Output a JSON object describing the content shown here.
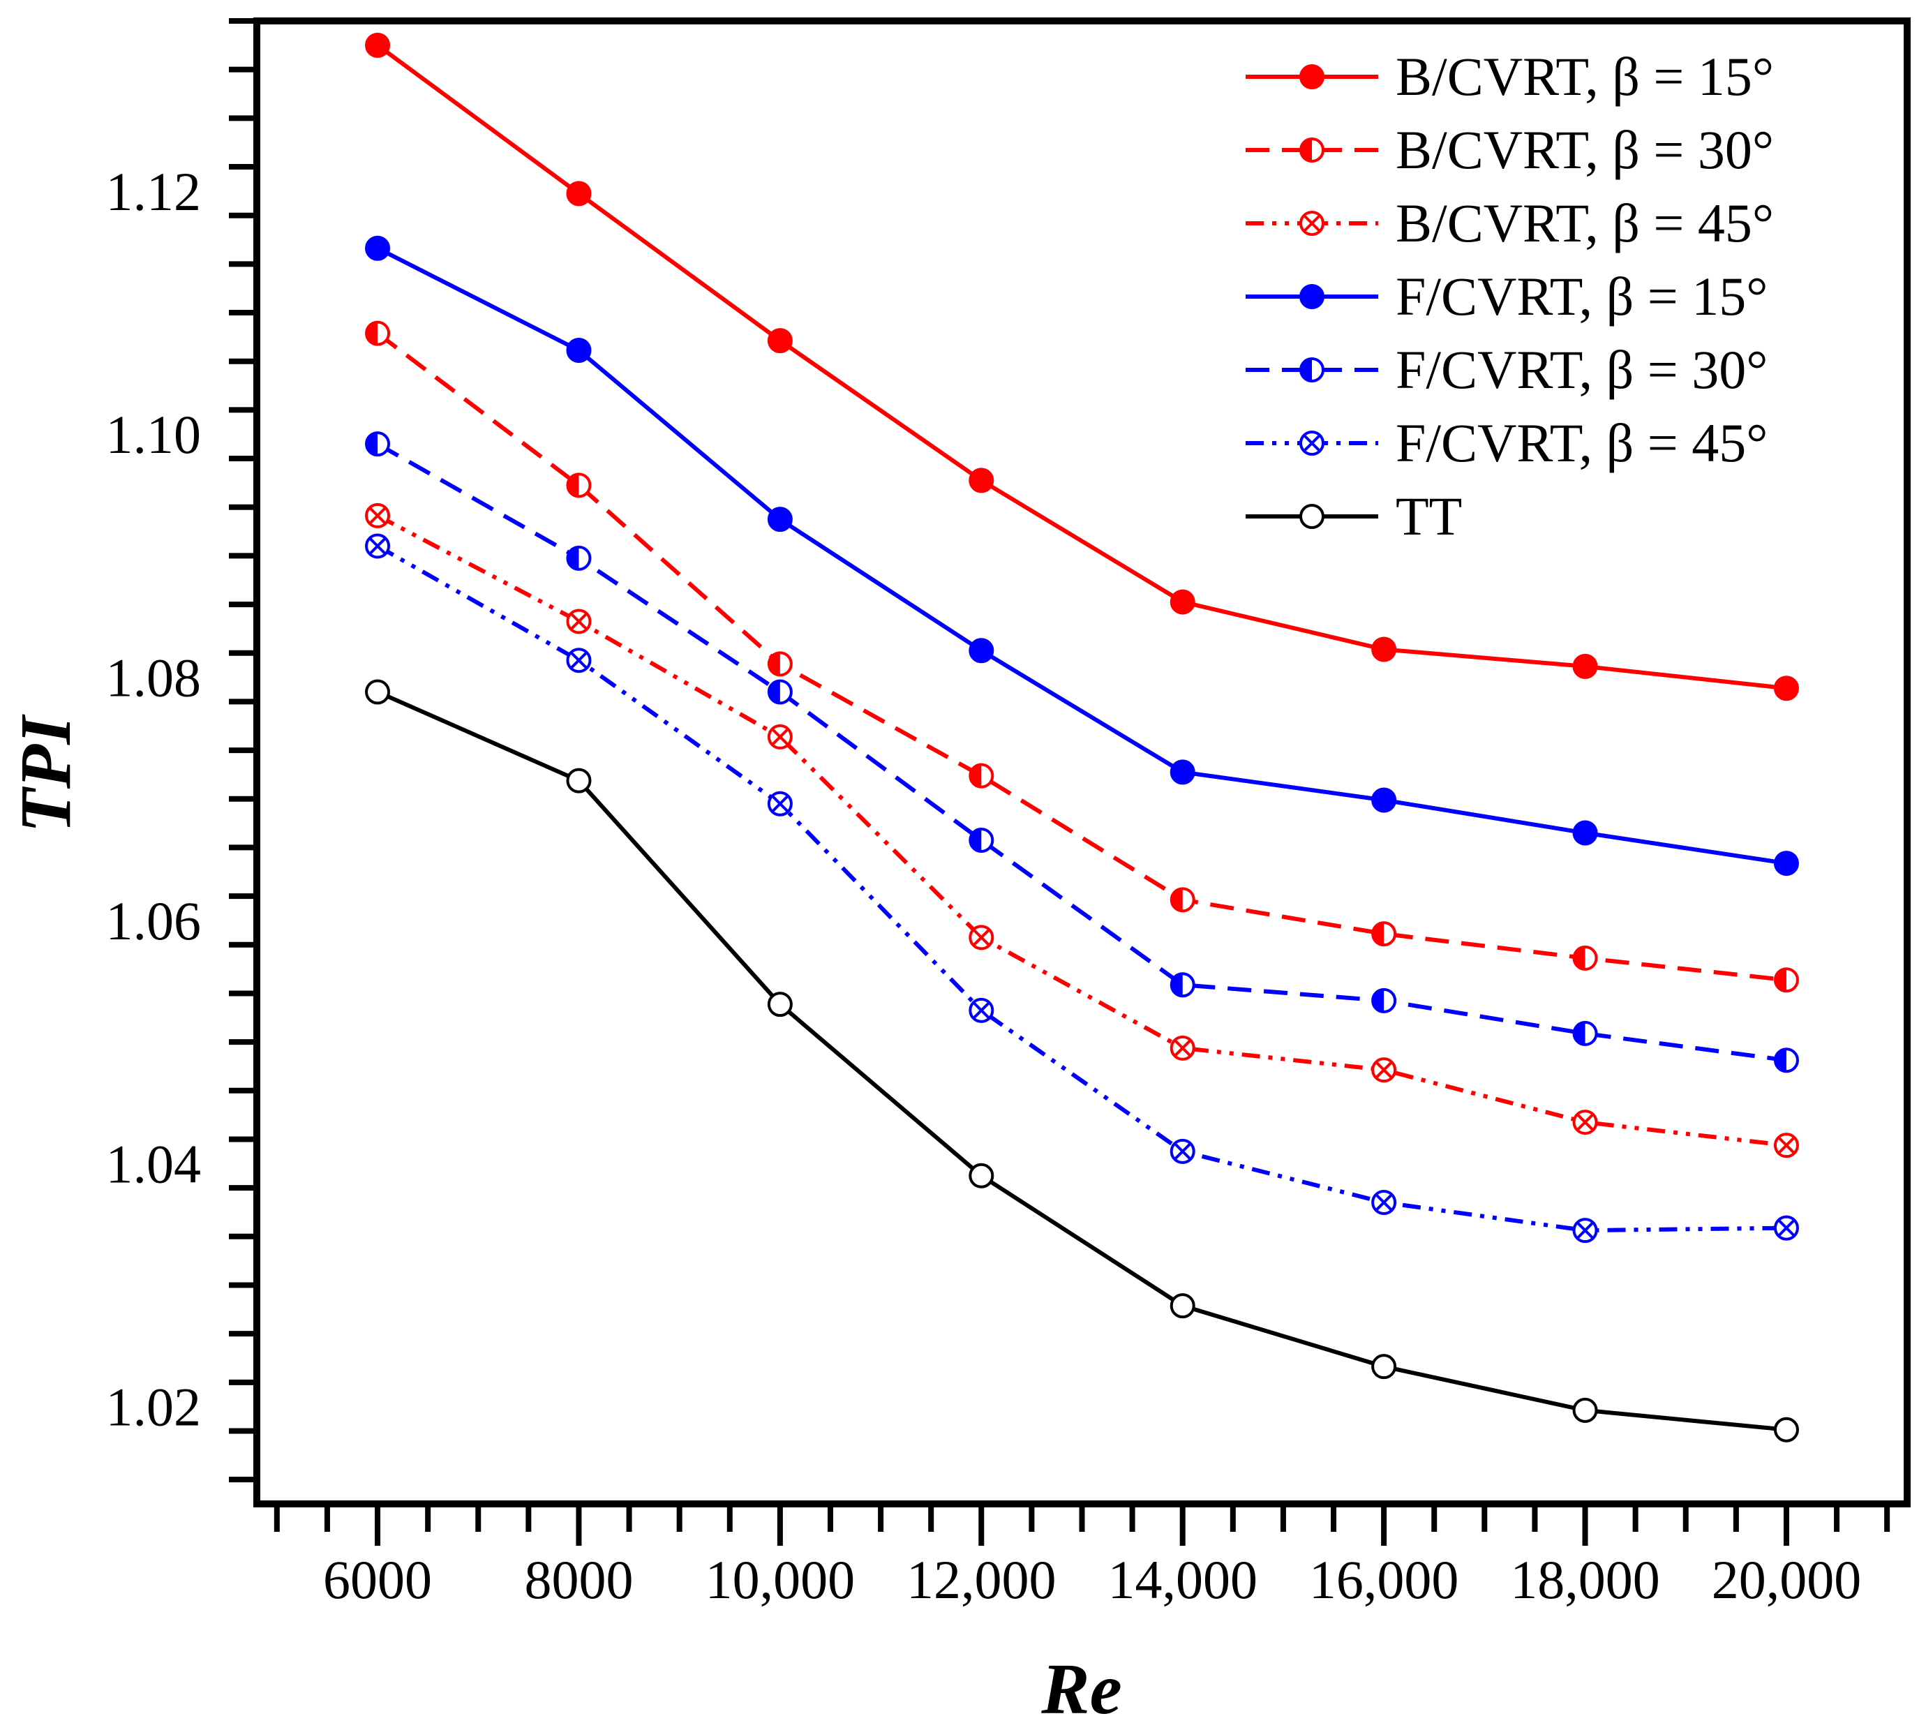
{
  "chart_data": {
    "type": "line",
    "title": "",
    "xlabel": "Re",
    "ylabel": "TPI",
    "xlim": [
      4800,
      21200
    ],
    "ylim": [
      1.012,
      1.134
    ],
    "x": [
      6000,
      8000,
      10000,
      12000,
      14000,
      16000,
      18000,
      20000
    ],
    "xticks": [
      {
        "value": 6000,
        "label": "6000"
      },
      {
        "value": 8000,
        "label": "8000"
      },
      {
        "value": 10000,
        "label": "10,000"
      },
      {
        "value": 12000,
        "label": "12,000"
      },
      {
        "value": 14000,
        "label": "14,000"
      },
      {
        "value": 16000,
        "label": "16,000"
      },
      {
        "value": 18000,
        "label": "18,000"
      },
      {
        "value": 20000,
        "label": "20,000"
      }
    ],
    "yticks": [
      {
        "value": 1.02,
        "label": "1.02"
      },
      {
        "value": 1.04,
        "label": "1.04"
      },
      {
        "value": 1.06,
        "label": "1.06"
      },
      {
        "value": 1.08,
        "label": "1.08"
      },
      {
        "value": 1.1,
        "label": "1.10"
      },
      {
        "value": 1.12,
        "label": "1.12"
      }
    ],
    "grid": false,
    "legend_position": "top-right",
    "series": [
      {
        "name": "B/CVRT, β = 15°",
        "color": "#ff0000",
        "line": "solid",
        "marker": "filled",
        "values": [
          1.132,
          1.1198,
          1.1077,
          1.0962,
          1.0862,
          1.0823,
          1.0809,
          1.0791
        ]
      },
      {
        "name": "B/CVRT, β = 30°",
        "color": "#ff0000",
        "line": "dashed",
        "marker": "half",
        "values": [
          1.1083,
          1.0958,
          1.0811,
          1.0719,
          1.0617,
          1.0589,
          1.0569,
          1.0551
        ]
      },
      {
        "name": "B/CVRT, β = 45°",
        "color": "#ff0000",
        "line": "dashdotdot",
        "marker": "crossed",
        "values": [
          1.0933,
          1.0846,
          1.0751,
          1.0586,
          1.0495,
          1.0477,
          1.0434,
          1.0415
        ]
      },
      {
        "name": "F/CVRT, β = 15°",
        "color": "#0000ff",
        "line": "solid",
        "marker": "filled",
        "values": [
          1.1153,
          1.1069,
          1.093,
          1.0822,
          1.0722,
          1.0699,
          1.0672,
          1.0647
        ]
      },
      {
        "name": "F/CVRT, β = 30°",
        "color": "#0000ff",
        "line": "dashed",
        "marker": "half",
        "values": [
          1.0992,
          1.0898,
          1.0788,
          1.0666,
          1.0547,
          1.0534,
          1.0507,
          1.0485
        ]
      },
      {
        "name": "F/CVRT, β = 45°",
        "color": "#0000ff",
        "line": "dashdotdot",
        "marker": "crossed",
        "values": [
          1.0908,
          1.0814,
          1.0696,
          1.0526,
          1.041,
          1.0368,
          1.0345,
          1.0347
        ]
      },
      {
        "name": "TT",
        "color": "#000000",
        "line": "solid",
        "marker": "open",
        "values": [
          1.0788,
          1.0715,
          1.0531,
          1.039,
          1.0283,
          1.0233,
          1.0197,
          1.0181
        ]
      }
    ]
  }
}
